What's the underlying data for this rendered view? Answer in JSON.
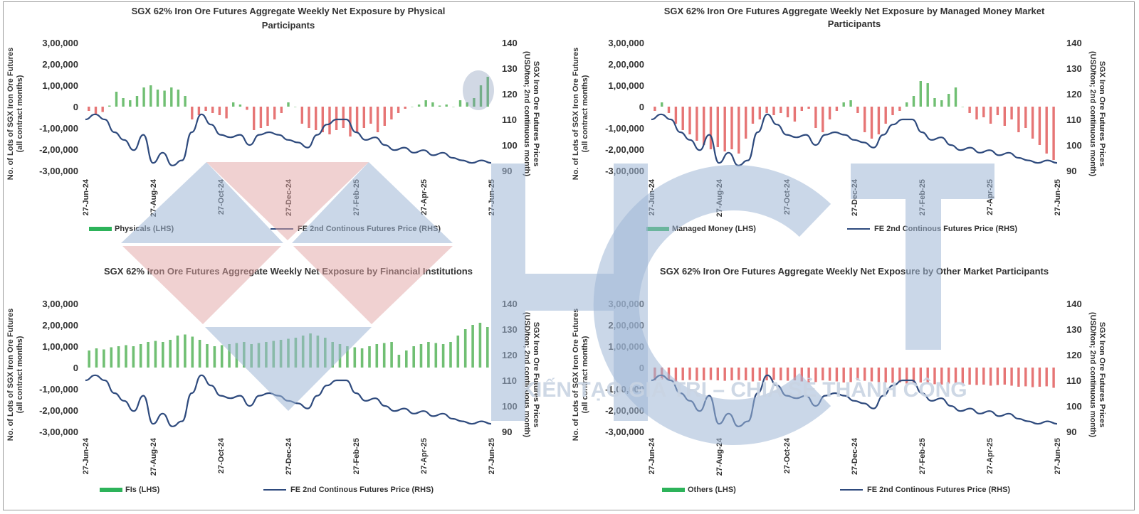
{
  "watermark": {
    "logo_letters": "HCT",
    "slogan": "KIẾN TẠO GIÁ TRỊ – CHIA SẺ THÀNH CÔNG",
    "colors": {
      "blue": "#9fb6d6",
      "red": "#e2a4a4"
    }
  },
  "colors": {
    "positive_bar": "#4caf50",
    "negative_bar": "#e05252",
    "price_line": "#2e4a7d",
    "legend_bar": "#2db35a"
  },
  "chart_data": [
    {
      "id": "physicals",
      "type": "bar+line",
      "title_lines": [
        "SGX 62% Iron Ore Futures Aggregate Weekly Net Exposure by Physical",
        "Participants"
      ],
      "ylabel_lines": [
        "No. of Lots of SGX Iron Ore Futures",
        "(all contract months)"
      ],
      "y2label_lines": [
        "SGX Iron Ore Futures Prices",
        "(USD/ton; 2nd continuous month)"
      ],
      "yticks": [
        "3,00,000",
        "2,00,000",
        "1,00,000",
        "0",
        "-1,00,000",
        "-2,00,000",
        "-3,00,000"
      ],
      "ylim": [
        -300000,
        300000
      ],
      "y2ticks": [
        "140",
        "130",
        "120",
        "110",
        "100",
        "90"
      ],
      "y2lim": [
        90,
        140
      ],
      "xticks": [
        "27-Jun-24",
        "27-Aug-24",
        "27-Oct-24",
        "27-Dec-24",
        "27-Feb-25",
        "27-Apr-25",
        "27-Jun-25"
      ],
      "bar_series_name": "Physicals (LHS)",
      "line_series_name": "FE 2nd Continous Futures Price (RHS)",
      "bar_values": [
        -20000,
        -40000,
        -25000,
        5000,
        70000,
        40000,
        30000,
        50000,
        90000,
        100000,
        80000,
        75000,
        90000,
        80000,
        50000,
        -60000,
        -40000,
        -20000,
        -30000,
        -40000,
        -55000,
        20000,
        10000,
        -15000,
        -110000,
        -100000,
        -90000,
        -60000,
        -30000,
        20000,
        0,
        -80000,
        -100000,
        -110000,
        -120000,
        -130000,
        -110000,
        -100000,
        -140000,
        -120000,
        -100000,
        -80000,
        -120000,
        -90000,
        -60000,
        -30000,
        -10000,
        0,
        10000,
        30000,
        20000,
        5000,
        10000,
        0,
        30000,
        20000,
        40000,
        100000,
        140000
      ],
      "price": [
        110,
        112,
        110,
        105,
        102,
        98,
        104,
        93,
        97,
        92,
        94,
        105,
        112,
        108,
        104,
        103,
        104,
        100,
        104,
        105,
        104,
        102,
        101,
        99,
        104,
        108,
        110,
        110,
        105,
        102,
        103,
        100,
        98,
        99,
        97,
        98,
        96,
        97,
        95,
        94,
        93,
        94,
        93
      ]
    },
    {
      "id": "managed-money",
      "type": "bar+line",
      "title_lines": [
        "SGX 62% Iron Ore Futures Aggregate Weekly Net Exposure by Managed Money Market",
        "Participants"
      ],
      "ylabel_lines": [
        "No. of Lots of SGX Iron Ore Futures",
        "(all contract months)"
      ],
      "y2label_lines": [
        "SGX Iron Ore Futures Prices",
        "(USD/ton; 2nd continuous month)"
      ],
      "yticks": [
        "3,00,000",
        "2,00,000",
        "1,00,000",
        "0",
        "-1,00,000",
        "-2,00,000",
        "-3,00,000"
      ],
      "ylim": [
        -300000,
        300000
      ],
      "y2ticks": [
        "140",
        "130",
        "120",
        "110",
        "100",
        "90"
      ],
      "y2lim": [
        90,
        140
      ],
      "xticks": [
        "27-Jun-24",
        "27-Aug-24",
        "27-Oct-24",
        "27-Dec-24",
        "27-Feb-25",
        "27-Apr-25",
        "27-Jun-25"
      ],
      "bar_series_name": "Managed Money (LHS)",
      "line_series_name": "FE 2nd Continous Futures Price (RHS)",
      "bar_values": [
        -20000,
        20000,
        -30000,
        -80000,
        -110000,
        -130000,
        -160000,
        -180000,
        -200000,
        -190000,
        -210000,
        -200000,
        -220000,
        -150000,
        -80000,
        -60000,
        -30000,
        -40000,
        -30000,
        -50000,
        -70000,
        -20000,
        -10000,
        -100000,
        -120000,
        -60000,
        -20000,
        20000,
        30000,
        -30000,
        -120000,
        -150000,
        -130000,
        -80000,
        -40000,
        -20000,
        20000,
        50000,
        120000,
        110000,
        40000,
        30000,
        60000,
        90000,
        0,
        -30000,
        -60000,
        -50000,
        -80000,
        -40000,
        -90000,
        -60000,
        -120000,
        -100000,
        -150000,
        -180000,
        -220000,
        -250000
      ],
      "price": [
        110,
        112,
        110,
        105,
        102,
        98,
        104,
        93,
        97,
        92,
        94,
        105,
        112,
        108,
        104,
        103,
        104,
        100,
        104,
        105,
        104,
        102,
        101,
        99,
        104,
        108,
        110,
        110,
        105,
        102,
        103,
        100,
        98,
        99,
        97,
        98,
        96,
        97,
        95,
        94,
        93,
        94,
        93
      ]
    },
    {
      "id": "financial-institutions",
      "type": "bar+line",
      "title_lines": [
        "SGX 62% Iron Ore Futures Aggregate Weekly Net Exposure by Financial Institutions"
      ],
      "ylabel_lines": [
        "No. of Lots of SGX Iron Ore Futures",
        "(all contract months)"
      ],
      "y2label_lines": [
        "SGX Iron Ore Futures Prices",
        "(USD/ton; 2nd continuous month)"
      ],
      "yticks": [
        "3,00,000",
        "2,00,000",
        "1,00,000",
        "0",
        "-1,00,000",
        "-2,00,000",
        "-3,00,000"
      ],
      "ylim": [
        -300000,
        300000
      ],
      "y2ticks": [
        "140",
        "130",
        "120",
        "110",
        "100",
        "90"
      ],
      "y2lim": [
        90,
        140
      ],
      "xticks": [
        "27-Jun-24",
        "27-Aug-24",
        "27-Oct-24",
        "27-Dec-24",
        "27-Feb-25",
        "27-Apr-25",
        "27-Jun-25"
      ],
      "bar_series_name": "FIs (LHS)",
      "line_series_name": "FE 2nd Continous Futures Price (RHS)",
      "bar_values": [
        80000,
        90000,
        85000,
        95000,
        100000,
        105000,
        100000,
        110000,
        120000,
        125000,
        120000,
        130000,
        150000,
        155000,
        145000,
        130000,
        110000,
        100000,
        105000,
        110000,
        115000,
        120000,
        110000,
        115000,
        120000,
        125000,
        130000,
        135000,
        140000,
        150000,
        160000,
        150000,
        140000,
        120000,
        110000,
        100000,
        95000,
        90000,
        100000,
        110000,
        115000,
        120000,
        60000,
        80000,
        100000,
        110000,
        120000,
        115000,
        110000,
        120000,
        150000,
        180000,
        200000,
        210000,
        190000
      ],
      "price": [
        110,
        112,
        110,
        105,
        102,
        98,
        104,
        93,
        97,
        92,
        94,
        105,
        112,
        108,
        104,
        103,
        104,
        100,
        104,
        105,
        104,
        102,
        101,
        99,
        104,
        108,
        110,
        110,
        105,
        102,
        103,
        100,
        98,
        99,
        97,
        98,
        96,
        97,
        95,
        94,
        93,
        94,
        93
      ]
    },
    {
      "id": "other-market-participants",
      "type": "bar+line",
      "title_lines": [
        "SGX 62% Iron Ore Futures Aggregate Weekly Net Exposure by Other Market Participants"
      ],
      "ylabel_lines": [
        "No. of Lots of SGX Iron Ore Futures",
        "(all contract months)"
      ],
      "y2label_lines": [
        "SGX Iron Ore Futures Prices",
        "(USD/ton; 2nd continuous month)"
      ],
      "yticks": [
        "3,00,000",
        "2,00,000",
        "1,00,000",
        "0",
        "-1,00,000",
        "-2,00,000",
        "-3,00,000"
      ],
      "ylim": [
        -300000,
        300000
      ],
      "y2ticks": [
        "140",
        "130",
        "120",
        "110",
        "100",
        "90"
      ],
      "y2lim": [
        90,
        140
      ],
      "xticks": [
        "27-Jun-24",
        "27-Aug-24",
        "27-Oct-24",
        "27-Dec-24",
        "27-Feb-25",
        "27-Apr-25",
        "27-Jun-25"
      ],
      "bar_series_name": "Others (LHS)",
      "line_series_name": "FE 2nd Continous Futures Price (RHS)",
      "bar_values": [
        -60000,
        -55000,
        -60000,
        -65000,
        -60000,
        -58000,
        -62000,
        -60000,
        -58000,
        -60000,
        -62000,
        -60000,
        -58000,
        -60000,
        -65000,
        -62000,
        -60000,
        -58000,
        -60000,
        -62000,
        -60000,
        -65000,
        -70000,
        -68000,
        -60000,
        -62000,
        -65000,
        -70000,
        -68000,
        -60000,
        -62000,
        -65000,
        -68000,
        -70000,
        -72000,
        -70000,
        -75000,
        -72000,
        -70000,
        -75000,
        -78000,
        -80000,
        -75000,
        -72000,
        -78000,
        -80000,
        -82000,
        -80000,
        -85000,
        -82000,
        -80000,
        -85000,
        -90000,
        -88000,
        -92000,
        -90000,
        -88000,
        -95000
      ],
      "price": [
        110,
        112,
        110,
        105,
        102,
        98,
        104,
        93,
        97,
        92,
        94,
        105,
        112,
        108,
        104,
        103,
        104,
        100,
        104,
        105,
        104,
        102,
        101,
        99,
        104,
        108,
        110,
        110,
        105,
        102,
        103,
        100,
        98,
        99,
        97,
        98,
        96,
        97,
        95,
        94,
        93,
        94,
        93
      ]
    }
  ]
}
